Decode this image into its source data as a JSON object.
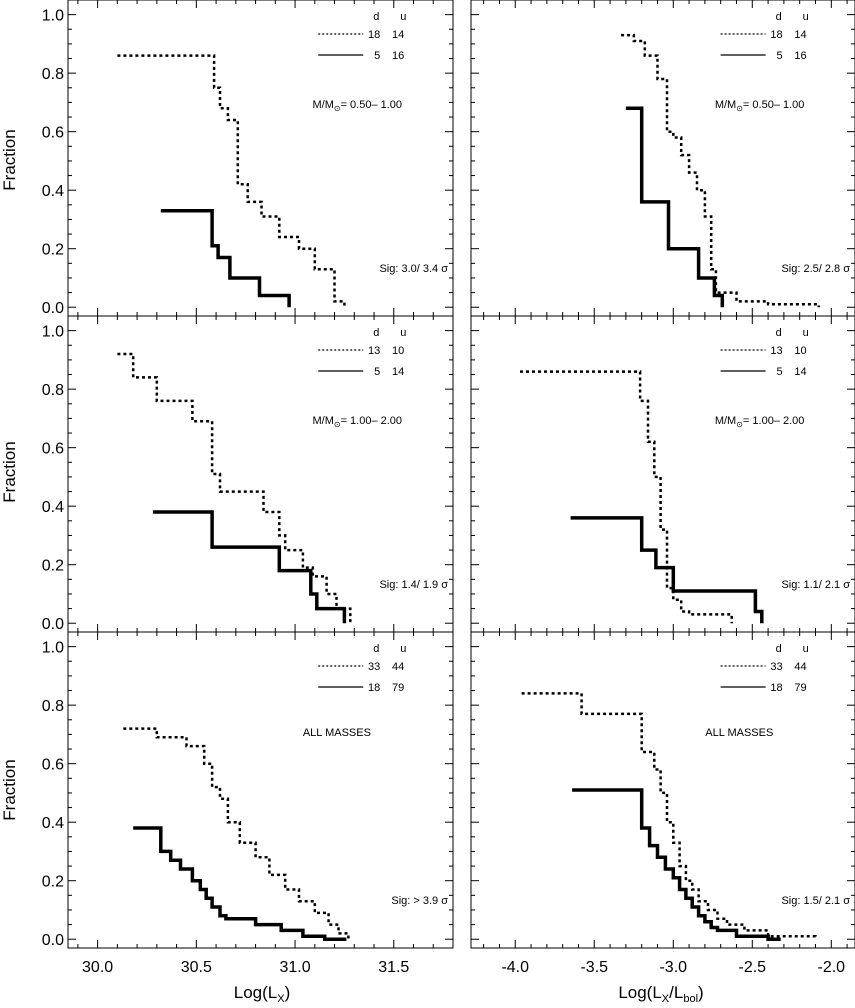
{
  "figure": {
    "ylabel": "Fraction",
    "xlabel_left": "Log(L",
    "xlabel_left_sub": "X",
    "xlabel_left_end": ")",
    "xlabel_right": "Log(L",
    "xlabel_right_sub1": "X",
    "xlabel_right_mid": "/L",
    "xlabel_right_sub2": "bol",
    "xlabel_right_end": ")",
    "legend_header_d": "d",
    "legend_header_u": "u",
    "mass_prefix": "M/M",
    "mass_sub": "⊙",
    "line_color": "#000000"
  },
  "chart_data": [
    {
      "type": "line",
      "id": "top-left",
      "xlim": [
        29.85,
        31.8
      ],
      "ylim": [
        -0.03,
        1.05
      ],
      "xticks": [],
      "yticks": [
        "0.0",
        "0.2",
        "0.4",
        "0.6",
        "0.8",
        "1.0"
      ],
      "legend": [
        {
          "style": "dotted",
          "d": "18",
          "u": "14"
        },
        {
          "style": "solid",
          "d": "5",
          "u": "16"
        }
      ],
      "mass": "= 0.50– 1.00",
      "label": "",
      "sig": "Sig: 3.0/ 3.4 σ",
      "series": [
        {
          "style": "dotted",
          "x": [
            30.1,
            30.59,
            30.59,
            30.62,
            30.62,
            30.66,
            30.66,
            30.71,
            30.71,
            30.76,
            30.76,
            30.83,
            30.83,
            30.92,
            30.92,
            31.02,
            31.02,
            31.1,
            31.1,
            31.2,
            31.2,
            31.25,
            31.25
          ],
          "y": [
            0.86,
            0.86,
            0.75,
            0.75,
            0.68,
            0.68,
            0.64,
            0.64,
            0.42,
            0.42,
            0.36,
            0.36,
            0.31,
            0.31,
            0.24,
            0.24,
            0.2,
            0.2,
            0.13,
            0.13,
            0.02,
            0.02,
            0.0
          ]
        },
        {
          "style": "solid",
          "x": [
            30.32,
            30.58,
            30.58,
            30.61,
            30.61,
            30.67,
            30.67,
            30.82,
            30.82,
            30.97,
            30.97
          ],
          "y": [
            0.33,
            0.33,
            0.21,
            0.21,
            0.17,
            0.17,
            0.1,
            0.1,
            0.04,
            0.04,
            0.0
          ]
        }
      ]
    },
    {
      "type": "line",
      "id": "top-right",
      "xlim": [
        -4.28,
        -1.85
      ],
      "ylim": [
        -0.03,
        1.05
      ],
      "xticks": [],
      "yticks": [],
      "legend": [
        {
          "style": "dotted",
          "d": "18",
          "u": "14"
        },
        {
          "style": "solid",
          "d": "5",
          "u": "16"
        }
      ],
      "mass": "= 0.50– 1.00",
      "label": "",
      "sig": "Sig: 2.5/ 2.8 σ",
      "series": [
        {
          "style": "dotted",
          "x": [
            -3.33,
            -3.25,
            -3.25,
            -3.18,
            -3.18,
            -3.1,
            -3.1,
            -3.04,
            -3.04,
            -3.0,
            -3.0,
            -2.95,
            -2.95,
            -2.9,
            -2.9,
            -2.85,
            -2.85,
            -2.8,
            -2.8,
            -2.76,
            -2.76,
            -2.73,
            -2.73,
            -2.6,
            -2.6,
            -2.4,
            -2.4,
            -2.08,
            -2.08
          ],
          "y": [
            0.93,
            0.93,
            0.91,
            0.91,
            0.86,
            0.86,
            0.78,
            0.78,
            0.6,
            0.6,
            0.58,
            0.58,
            0.52,
            0.52,
            0.46,
            0.46,
            0.4,
            0.4,
            0.31,
            0.31,
            0.13,
            0.13,
            0.05,
            0.05,
            0.02,
            0.02,
            0.01,
            0.01,
            0.0
          ]
        },
        {
          "style": "solid",
          "x": [
            -3.3,
            -3.2,
            -3.2,
            -3.03,
            -3.03,
            -2.84,
            -2.84,
            -2.74,
            -2.74,
            -2.69,
            -2.69
          ],
          "y": [
            0.68,
            0.68,
            0.36,
            0.36,
            0.2,
            0.2,
            0.1,
            0.1,
            0.04,
            0.04,
            0.0
          ]
        }
      ]
    },
    {
      "type": "line",
      "id": "mid-left",
      "xlim": [
        29.85,
        31.8
      ],
      "ylim": [
        -0.03,
        1.05
      ],
      "xticks": [],
      "yticks": [
        "0.0",
        "0.2",
        "0.4",
        "0.6",
        "0.8",
        "1.0"
      ],
      "legend": [
        {
          "style": "dotted",
          "d": "13",
          "u": "10"
        },
        {
          "style": "solid",
          "d": "5",
          "u": "14"
        }
      ],
      "mass": "= 1.00– 2.00",
      "label": "",
      "sig": "Sig: 1.4/ 1.9 σ",
      "series": [
        {
          "style": "dotted",
          "x": [
            30.1,
            30.18,
            30.18,
            30.3,
            30.3,
            30.48,
            30.48,
            30.58,
            30.58,
            30.62,
            30.62,
            30.84,
            30.84,
            30.92,
            30.92,
            30.95,
            30.95,
            31.04,
            31.04,
            31.09,
            31.09,
            31.16,
            31.16,
            31.21,
            31.21,
            31.28,
            31.28
          ],
          "y": [
            0.92,
            0.92,
            0.84,
            0.84,
            0.76,
            0.76,
            0.69,
            0.69,
            0.51,
            0.51,
            0.45,
            0.45,
            0.38,
            0.38,
            0.3,
            0.3,
            0.25,
            0.25,
            0.19,
            0.19,
            0.16,
            0.16,
            0.1,
            0.1,
            0.05,
            0.05,
            0.0
          ]
        },
        {
          "style": "solid",
          "x": [
            30.28,
            30.58,
            30.58,
            30.92,
            30.92,
            31.08,
            31.08,
            31.11,
            31.11,
            31.25,
            31.25
          ],
          "y": [
            0.38,
            0.38,
            0.26,
            0.26,
            0.18,
            0.18,
            0.1,
            0.1,
            0.05,
            0.05,
            0.0
          ]
        }
      ]
    },
    {
      "type": "line",
      "id": "mid-right",
      "xlim": [
        -4.28,
        -1.85
      ],
      "ylim": [
        -0.03,
        1.05
      ],
      "xticks": [],
      "yticks": [],
      "legend": [
        {
          "style": "dotted",
          "d": "13",
          "u": "10"
        },
        {
          "style": "solid",
          "d": "5",
          "u": "14"
        }
      ],
      "mass": "= 1.00– 2.00",
      "label": "",
      "sig": "Sig: 1.1/ 2.1 σ",
      "series": [
        {
          "style": "dotted",
          "x": [
            -3.97,
            -3.21,
            -3.21,
            -3.16,
            -3.16,
            -3.12,
            -3.12,
            -3.08,
            -3.08,
            -3.04,
            -3.04,
            -3.0,
            -3.0,
            -2.95,
            -2.95,
            -2.9,
            -2.9,
            -2.63,
            -2.63
          ],
          "y": [
            0.86,
            0.86,
            0.76,
            0.76,
            0.62,
            0.62,
            0.5,
            0.5,
            0.32,
            0.32,
            0.12,
            0.12,
            0.08,
            0.08,
            0.04,
            0.04,
            0.03,
            0.03,
            0.0
          ]
        },
        {
          "style": "solid",
          "x": [
            -3.65,
            -3.2,
            -3.2,
            -3.11,
            -3.11,
            -3.0,
            -3.0,
            -2.48,
            -2.48,
            -2.44,
            -2.44
          ],
          "y": [
            0.36,
            0.36,
            0.25,
            0.25,
            0.19,
            0.19,
            0.11,
            0.11,
            0.04,
            0.04,
            0.0
          ]
        }
      ]
    },
    {
      "type": "line",
      "id": "bottom-left",
      "xlim": [
        29.85,
        31.8
      ],
      "ylim": [
        -0.03,
        1.05
      ],
      "xticks": [
        "30.0",
        "30.5",
        "31.0",
        "31.5"
      ],
      "yticks": [
        "0.0",
        "0.2",
        "0.4",
        "0.6",
        "0.8",
        "1.0"
      ],
      "legend": [
        {
          "style": "dotted",
          "d": "33",
          "u": "44"
        },
        {
          "style": "solid",
          "d": "18",
          "u": "79"
        }
      ],
      "mass": "",
      "label": "ALL MASSES",
      "sig": "Sig: > 3.9 σ",
      "series": [
        {
          "style": "dotted",
          "x": [
            30.13,
            30.3,
            30.3,
            30.45,
            30.45,
            30.54,
            30.54,
            30.58,
            30.58,
            30.62,
            30.62,
            30.66,
            30.66,
            30.72,
            30.72,
            30.8,
            30.8,
            30.87,
            30.87,
            30.95,
            30.95,
            31.02,
            31.02,
            31.1,
            31.1,
            31.17,
            31.17,
            31.22,
            31.22,
            31.27,
            31.27
          ],
          "y": [
            0.72,
            0.72,
            0.69,
            0.69,
            0.66,
            0.66,
            0.6,
            0.6,
            0.52,
            0.52,
            0.48,
            0.48,
            0.4,
            0.4,
            0.33,
            0.33,
            0.28,
            0.28,
            0.22,
            0.22,
            0.17,
            0.17,
            0.13,
            0.13,
            0.09,
            0.09,
            0.05,
            0.05,
            0.02,
            0.02,
            0.0
          ]
        },
        {
          "style": "solid",
          "x": [
            30.18,
            30.32,
            30.32,
            30.37,
            30.37,
            30.42,
            30.42,
            30.48,
            30.48,
            30.52,
            30.52,
            30.55,
            30.55,
            30.58,
            30.58,
            30.62,
            30.62,
            30.65,
            30.65,
            30.8,
            30.8,
            30.93,
            30.93,
            31.04,
            31.04,
            31.15,
            31.15,
            31.26,
            31.26
          ],
          "y": [
            0.38,
            0.38,
            0.3,
            0.3,
            0.27,
            0.27,
            0.24,
            0.24,
            0.2,
            0.2,
            0.17,
            0.17,
            0.14,
            0.14,
            0.11,
            0.11,
            0.08,
            0.08,
            0.07,
            0.07,
            0.05,
            0.05,
            0.03,
            0.03,
            0.01,
            0.01,
            0.0,
            0.0,
            0.0
          ]
        }
      ]
    },
    {
      "type": "line",
      "id": "bottom-right",
      "xlim": [
        -4.28,
        -1.85
      ],
      "ylim": [
        -0.03,
        1.05
      ],
      "xticks": [
        "-4.0",
        "-3.5",
        "-3.0",
        "-2.5",
        "-2.0"
      ],
      "yticks": [],
      "legend": [
        {
          "style": "dotted",
          "d": "33",
          "u": "44"
        },
        {
          "style": "solid",
          "d": "18",
          "u": "79"
        }
      ],
      "mass": "",
      "label": "ALL MASSES",
      "sig": "Sig: 1.5/ 2.1 σ",
      "series": [
        {
          "style": "dotted",
          "x": [
            -3.96,
            -3.58,
            -3.58,
            -3.2,
            -3.2,
            -3.12,
            -3.12,
            -3.08,
            -3.08,
            -3.04,
            -3.04,
            -3.0,
            -3.0,
            -2.96,
            -2.96,
            -2.92,
            -2.92,
            -2.88,
            -2.88,
            -2.84,
            -2.84,
            -2.78,
            -2.78,
            -2.72,
            -2.72,
            -2.66,
            -2.66,
            -2.55,
            -2.55,
            -2.4,
            -2.4,
            -2.1,
            -2.1
          ],
          "y": [
            0.84,
            0.84,
            0.77,
            0.77,
            0.64,
            0.64,
            0.58,
            0.58,
            0.5,
            0.5,
            0.4,
            0.4,
            0.33,
            0.33,
            0.25,
            0.25,
            0.2,
            0.2,
            0.17,
            0.17,
            0.13,
            0.13,
            0.1,
            0.1,
            0.07,
            0.07,
            0.05,
            0.05,
            0.03,
            0.03,
            0.01,
            0.01,
            0.0
          ]
        },
        {
          "style": "solid",
          "x": [
            -3.64,
            -3.2,
            -3.2,
            -3.15,
            -3.15,
            -3.1,
            -3.1,
            -3.05,
            -3.05,
            -3.0,
            -3.0,
            -2.96,
            -2.96,
            -2.92,
            -2.92,
            -2.88,
            -2.88,
            -2.84,
            -2.84,
            -2.8,
            -2.8,
            -2.76,
            -2.76,
            -2.72,
            -2.72,
            -2.6,
            -2.6,
            -2.4,
            -2.4,
            -2.32,
            -2.32
          ],
          "y": [
            0.51,
            0.51,
            0.38,
            0.38,
            0.32,
            0.32,
            0.28,
            0.28,
            0.24,
            0.24,
            0.21,
            0.21,
            0.17,
            0.17,
            0.14,
            0.14,
            0.11,
            0.11,
            0.08,
            0.08,
            0.06,
            0.06,
            0.04,
            0.04,
            0.03,
            0.03,
            0.01,
            0.01,
            0.0,
            0.0,
            0.0
          ]
        }
      ]
    }
  ]
}
